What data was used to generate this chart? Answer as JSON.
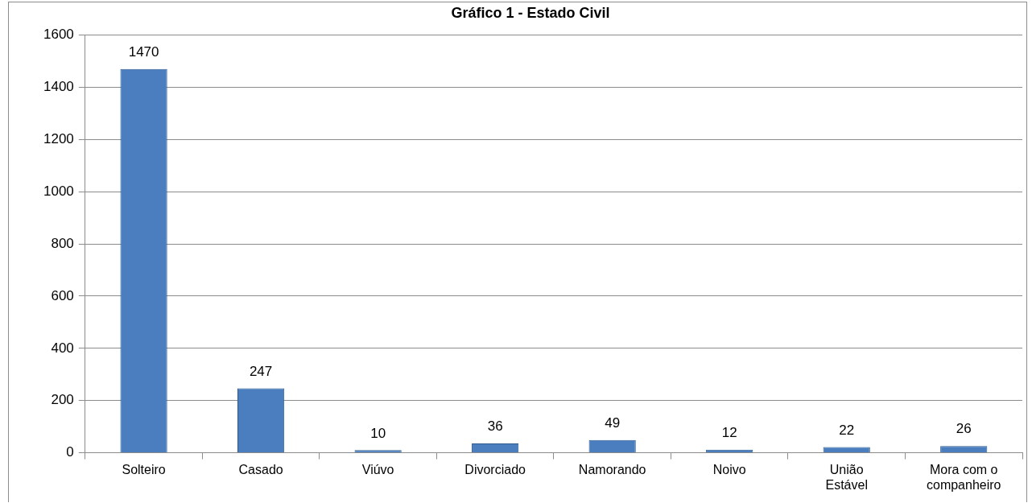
{
  "chart_data": {
    "type": "bar",
    "title": "Gráfico 1 - Estado Civil",
    "categories": [
      "Solteiro",
      "Casado",
      "Viúvo",
      "Divorciado",
      "Namorando",
      "Noivo",
      "União Estável",
      "Mora com o companheiro"
    ],
    "values": [
      1470,
      247,
      10,
      36,
      49,
      12,
      22,
      26
    ],
    "color": "#4a7ebf",
    "ylim": [
      0,
      1600
    ],
    "yticks": [
      0,
      200,
      400,
      600,
      800,
      1000,
      1200,
      1400,
      1600
    ],
    "grid": "y",
    "data_labels": true
  }
}
